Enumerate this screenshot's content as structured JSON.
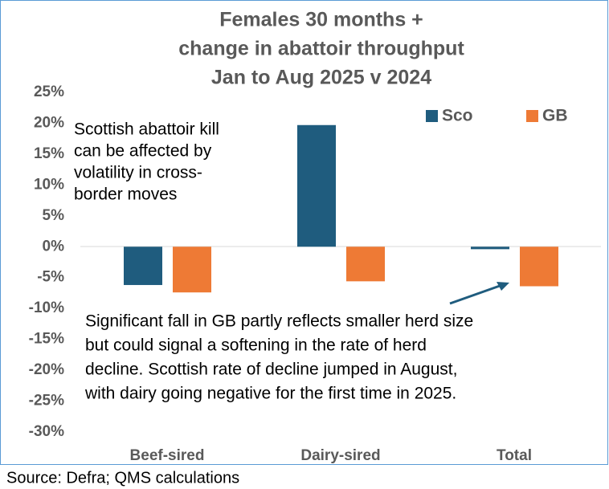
{
  "chart_data": {
    "type": "bar",
    "title": [
      "Females 30 months +",
      "change in abattoir throughput",
      "Jan to Aug 2025 v 2024"
    ],
    "categories": [
      "Beef-sired",
      "Dairy-sired",
      "Total"
    ],
    "series": [
      {
        "name": "Sco",
        "color": "#1f5c7e",
        "values": [
          -6.2,
          19.7,
          -0.4
        ]
      },
      {
        "name": "GB",
        "color": "#ee7a35",
        "values": [
          -7.4,
          -5.6,
          -6.4
        ]
      }
    ],
    "ylim": [
      -30,
      25
    ],
    "yticks": [
      {
        "value": -30,
        "label": "-30%"
      },
      {
        "value": -25,
        "label": "-25%"
      },
      {
        "value": -20,
        "label": "-20%"
      },
      {
        "value": -15,
        "label": "-15%"
      },
      {
        "value": -10,
        "label": "-10%"
      },
      {
        "value": -5,
        "label": "-5%"
      },
      {
        "value": 0,
        "label": "0%"
      },
      {
        "value": 5,
        "label": "5%"
      },
      {
        "value": 10,
        "label": "10%"
      },
      {
        "value": 15,
        "label": "15%"
      },
      {
        "value": 20,
        "label": "20%"
      },
      {
        "value": 25,
        "label": "25%"
      }
    ],
    "legend": "top-right",
    "annotations": [
      [
        "Scottish abattoir kill",
        "can be affected by",
        "volatility in cross-",
        "border moves"
      ],
      [
        "Significant fall in GB partly reflects smaller herd size",
        "but could signal a softening in the rate of herd",
        "decline. Scottish rate of decline jumped in August,",
        "with dairy going negative for the first time in 2025."
      ]
    ],
    "source": "Source: Defra; QMS calculations"
  }
}
